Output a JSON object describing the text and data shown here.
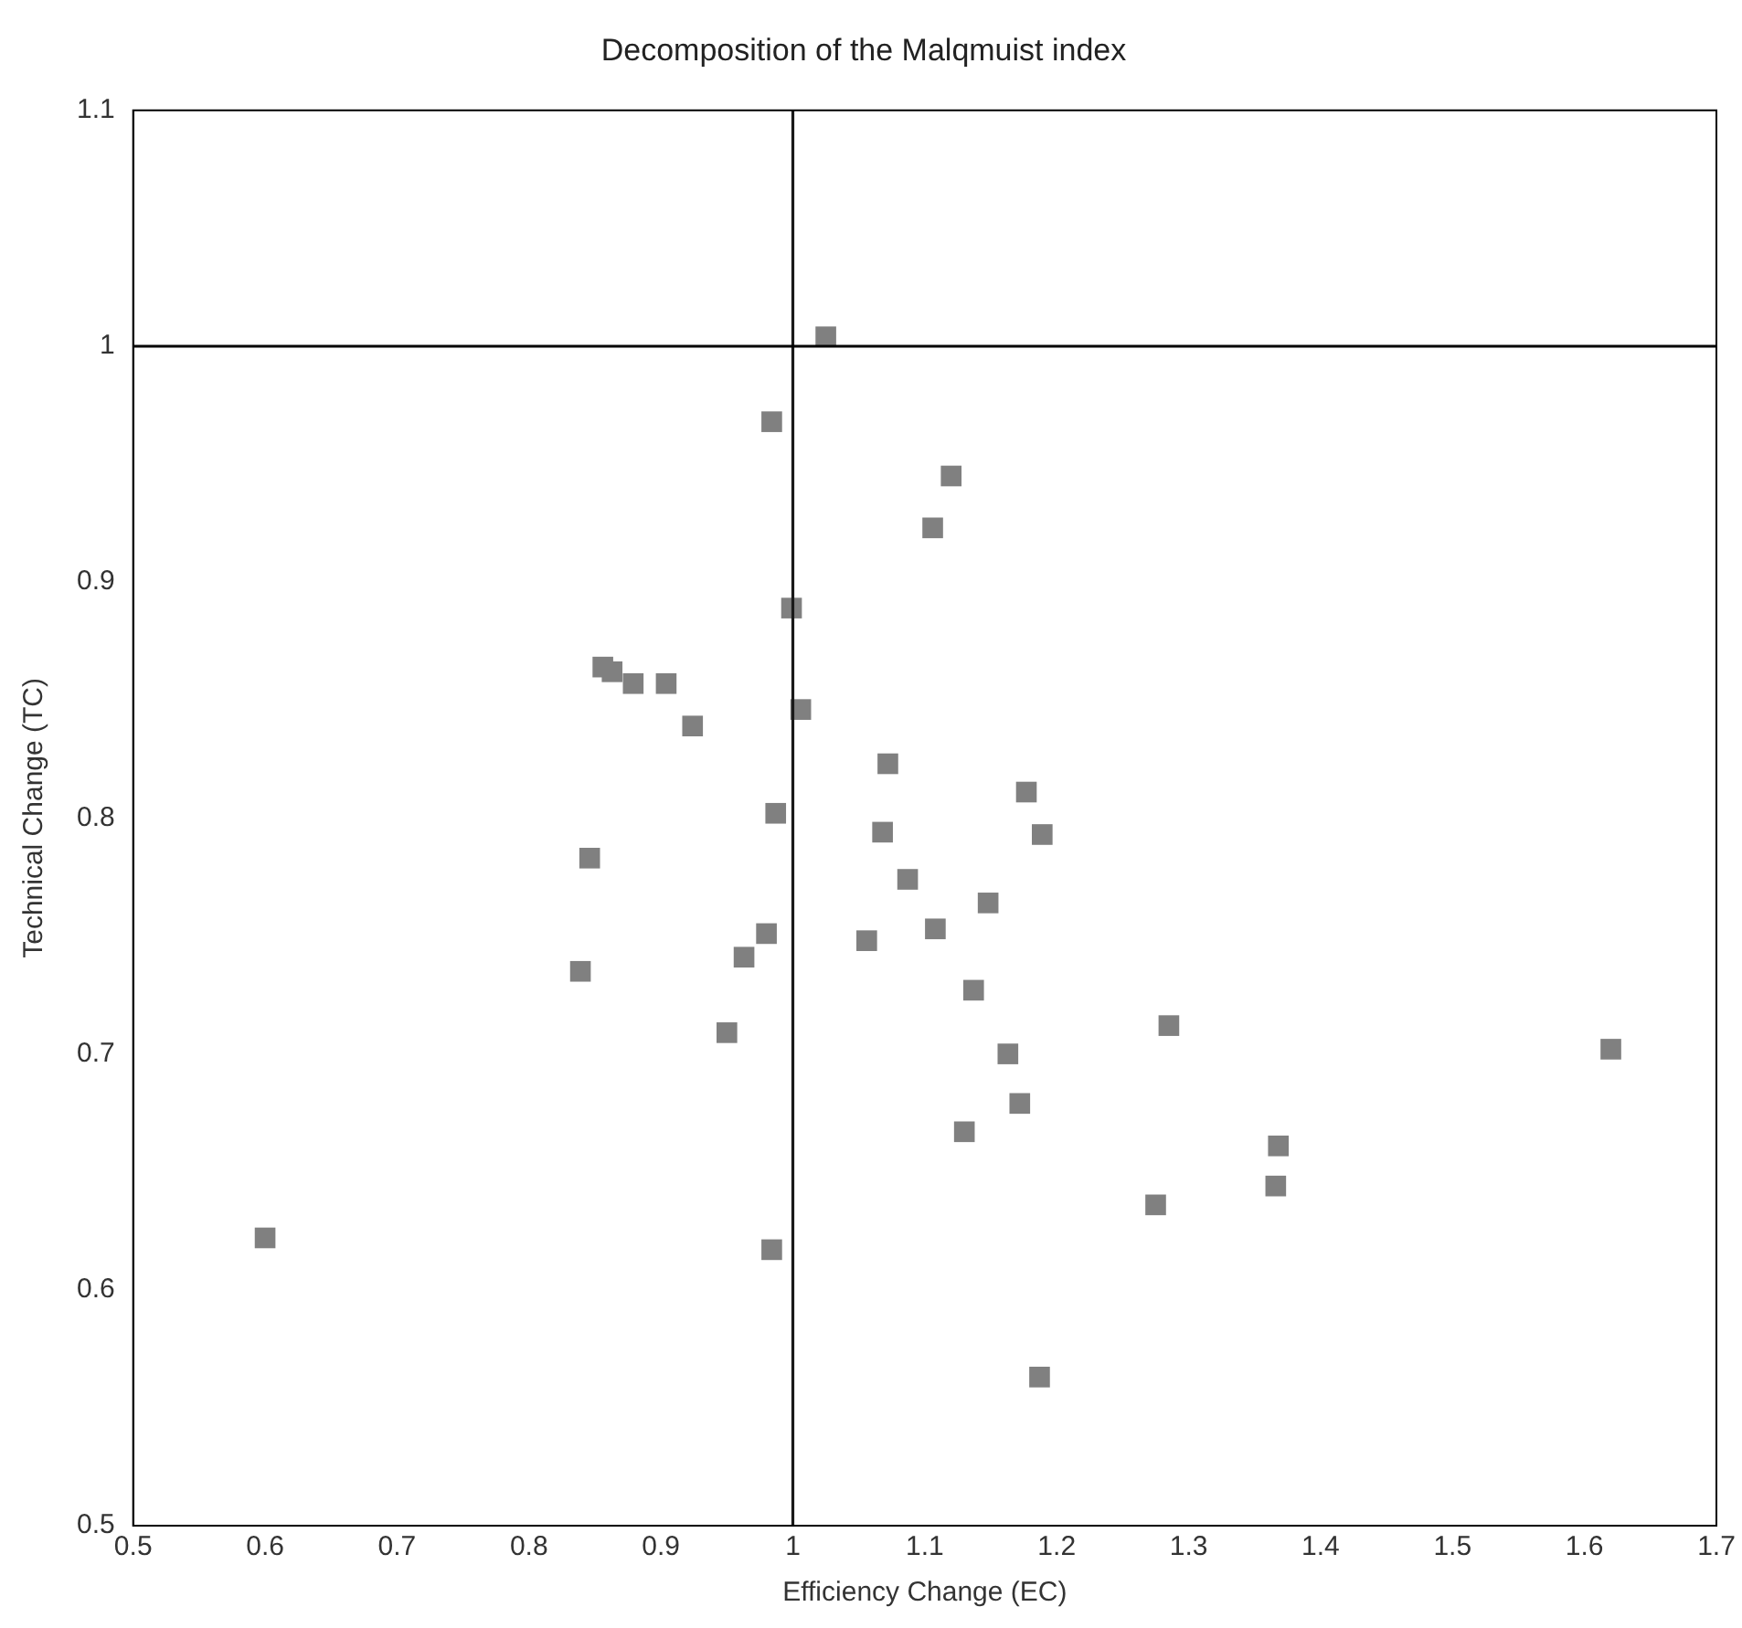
{
  "chart_data": {
    "type": "scatter",
    "title": "Decomposition of the Malqmuist index",
    "xlabel": "Efficiency Change (EC)",
    "ylabel": "Technical Change (TC)",
    "x": [
      1.025,
      0.984,
      1.12,
      1.106,
      0.999,
      0.856,
      0.863,
      0.879,
      0.904,
      0.924,
      1.006,
      1.072,
      1.177,
      0.987,
      1.068,
      1.189,
      0.846,
      1.087,
      1.148,
      1.108,
      0.98,
      1.056,
      0.963,
      0.839,
      1.137,
      1.285,
      0.95,
      1.62,
      1.163,
      1.172,
      1.13,
      1.368,
      1.275,
      1.366,
      0.6,
      0.984,
      1.187
    ],
    "series": [
      {
        "color": "#808080",
        "values": [
          1.004,
          0.968,
          0.945,
          0.923,
          0.889,
          0.864,
          0.862,
          0.857,
          0.857,
          0.839,
          0.846,
          0.823,
          0.811,
          0.802,
          0.794,
          0.793,
          0.783,
          0.774,
          0.764,
          0.753,
          0.751,
          0.748,
          0.741,
          0.735,
          0.727,
          0.712,
          0.709,
          0.702,
          0.7,
          0.679,
          0.667,
          0.661,
          0.636,
          0.644,
          0.622,
          0.617,
          0.563
        ]
      }
    ],
    "xlim": [
      0.5,
      1.7
    ],
    "xticks": [
      0.5,
      0.6,
      0.7,
      0.8,
      0.9,
      1,
      1.1,
      1.2,
      1.3,
      1.4,
      1.5,
      1.6,
      1.7
    ],
    "ylim": [
      0.5,
      1.1
    ],
    "yticks": [
      0.5,
      0.6,
      0.7,
      0.8,
      0.9,
      1,
      1.1
    ],
    "ref_lines": [
      {
        "axis": "x",
        "value": 1,
        "color": "#1a1a1a"
      },
      {
        "axis": "y",
        "value": 1,
        "color": "#000000"
      }
    ],
    "marker": "square",
    "grid": false,
    "legend": false
  }
}
